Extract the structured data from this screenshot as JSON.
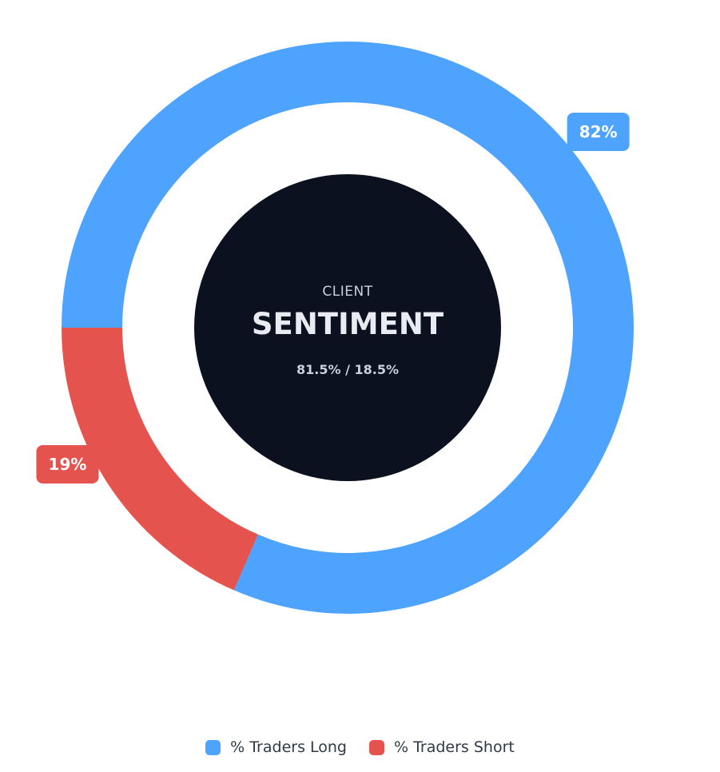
{
  "chart_data": {
    "type": "pie",
    "variant": "doughnut",
    "categories": [
      "% Traders Long",
      "% Traders Short"
    ],
    "values": [
      81.5,
      18.5
    ],
    "colors": [
      "#4ea3ff",
      "#e5534e"
    ],
    "data_labels": [
      "82%",
      "19%"
    ],
    "center": {
      "title_small": "CLIENT",
      "title_large": "SENTIMENT",
      "subtitle": "81.5% / 18.5%"
    },
    "legend": "bottom-center"
  },
  "legend": {
    "items": [
      {
        "label": "% Traders Long",
        "color": "#4ea3ff"
      },
      {
        "label": "% Traders Short",
        "color": "#e5534e"
      }
    ]
  },
  "colors": {
    "center_fill": "#0c1120",
    "center_title_small": "#c9d1dc",
    "center_title_large": "#e8ecf2",
    "center_subtitle": "#c9d1dc",
    "label_text": "#ffffff"
  }
}
